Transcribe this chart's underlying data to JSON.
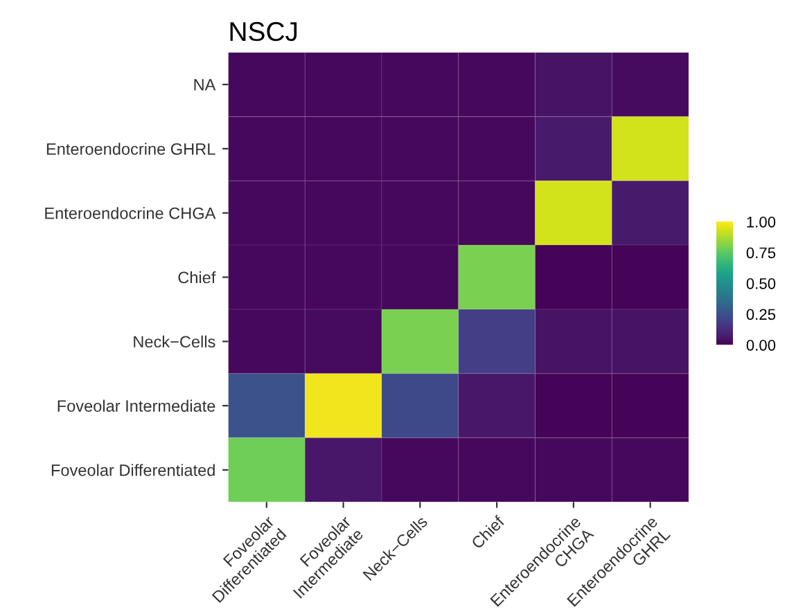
{
  "chart_data": {
    "type": "heatmap",
    "title": "NSCJ",
    "categories": [
      "Foveolar\nDifferentiated",
      "Foveolar\nIntermediate",
      "Neck−Cells",
      "Chief",
      "Enteroendocrine\nCHGA",
      "Enteroendocrine\nGHRL"
    ],
    "y_categories": [
      "NA",
      "Enteroendocrine GHRL",
      "Enteroendocrine CHGA",
      "Chief",
      "Neck−Cells",
      "Foveolar Intermediate",
      "Foveolar Differentiated"
    ],
    "cells": [
      [
        0.02,
        0.02,
        0.02,
        0.02,
        0.05,
        0.03
      ],
      [
        0.02,
        0.02,
        0.02,
        0.02,
        0.07,
        0.93
      ],
      [
        0.02,
        0.02,
        0.02,
        0.02,
        0.93,
        0.07
      ],
      [
        0.02,
        0.02,
        0.02,
        0.8,
        0.01,
        0.01
      ],
      [
        0.02,
        0.03,
        0.8,
        0.18,
        0.05,
        0.05
      ],
      [
        0.25,
        0.98,
        0.22,
        0.06,
        0.01,
        0.01
      ],
      [
        0.78,
        0.06,
        0.02,
        0.02,
        0.02,
        0.02
      ]
    ],
    "clim": [
      0,
      1
    ],
    "cticks": [
      {
        "value": 0,
        "label": "0.00"
      },
      {
        "value": 0.25,
        "label": "0.25"
      },
      {
        "value": 0.5,
        "label": "0.50"
      },
      {
        "value": 0.75,
        "label": "0.75"
      },
      {
        "value": 1,
        "label": "1.00"
      }
    ]
  }
}
